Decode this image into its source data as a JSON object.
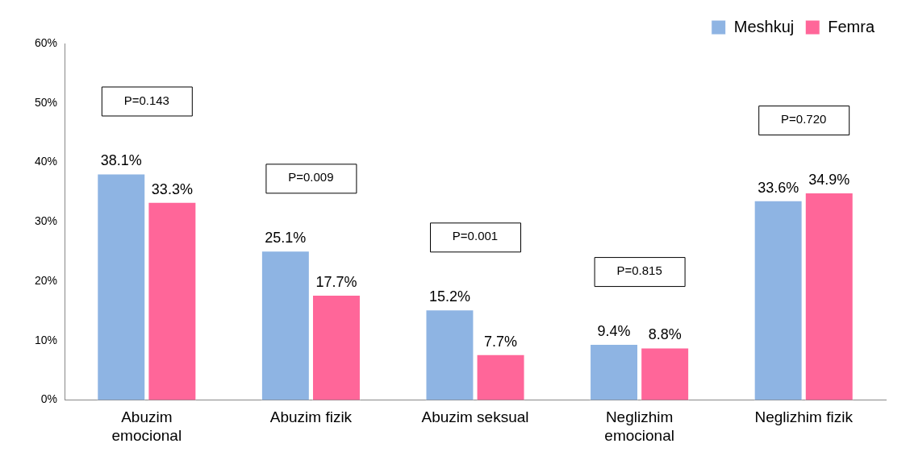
{
  "chart_data": {
    "type": "bar",
    "categories": [
      "Abuzim emocional",
      "Abuzim fizik",
      "Abuzim seksual",
      "Neglizhim emocional",
      "Neglizhim fizik"
    ],
    "series": [
      {
        "name": "Meshkuj",
        "color": "#8eb4e3",
        "values": [
          38.1,
          25.1,
          15.2,
          9.4,
          33.6
        ],
        "value_labels": [
          "38.1%",
          "25.1%",
          "15.2%",
          "9.4%",
          "33.6%"
        ]
      },
      {
        "name": "Femra",
        "color": "#ff6699",
        "values": [
          33.3,
          17.7,
          7.7,
          8.8,
          34.9
        ],
        "value_labels": [
          "33.3%",
          "17.7%",
          "7.7%",
          "8.8%",
          "34.9%"
        ]
      }
    ],
    "ylim": [
      0,
      60
    ],
    "yticks": [
      {
        "value": 0,
        "label": "0%"
      },
      {
        "value": 10,
        "label": "10%"
      },
      {
        "value": 20,
        "label": "20%"
      },
      {
        "value": 30,
        "label": "30%"
      },
      {
        "value": 40,
        "label": "40%"
      },
      {
        "value": 50,
        "label": "50%"
      },
      {
        "value": 60,
        "label": "60%"
      }
    ],
    "annotations": [
      "P=0.143",
      "P=0.009",
      "P=0.001",
      "P=0.815",
      "P=0.720"
    ],
    "grid": false,
    "legend": "top right"
  }
}
